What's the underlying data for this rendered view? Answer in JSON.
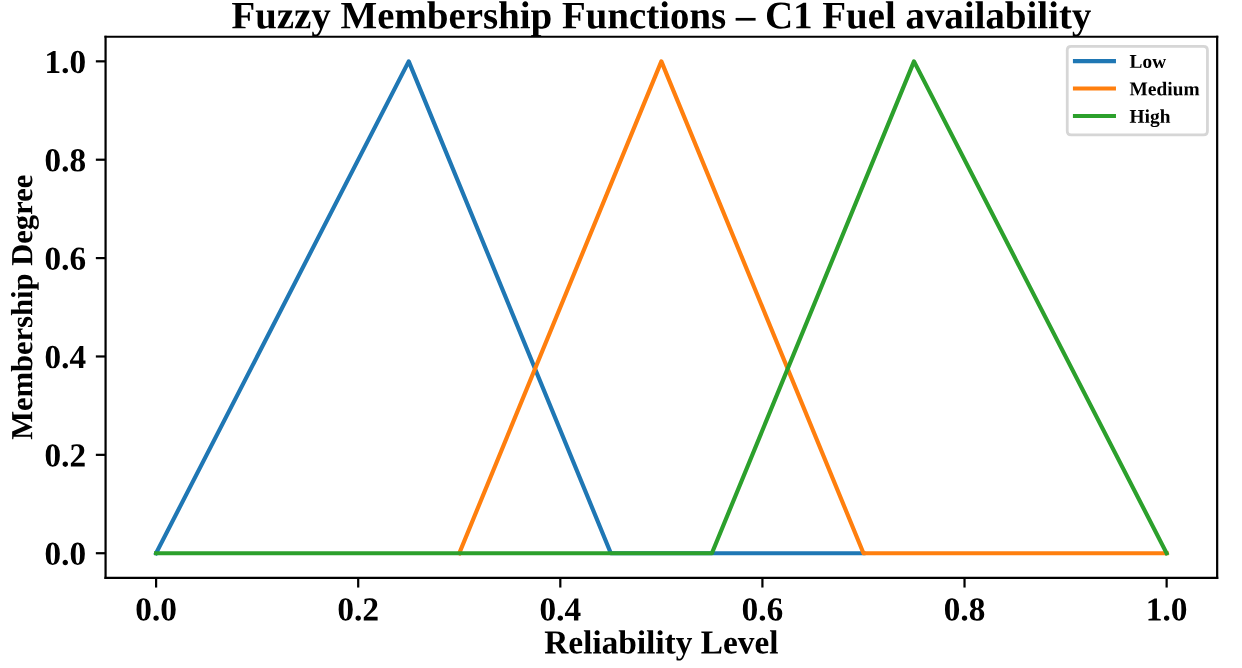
{
  "chart_data": {
    "type": "line",
    "title": "Fuzzy Membership Functions – C1 Fuel availability",
    "xlabel": "Reliability Level",
    "ylabel": "Membership Degree",
    "series": [
      {
        "name": "Low",
        "color": "#1f77b4",
        "x": [
          0,
          0.25,
          0.45,
          0.7
        ],
        "values": [
          0,
          1,
          0,
          0
        ]
      },
      {
        "name": "Medium",
        "color": "#ff7f0e",
        "x": [
          0.3,
          0.5,
          0.7,
          1.0
        ],
        "values": [
          0,
          1,
          0,
          0
        ]
      },
      {
        "name": "High",
        "color": "#2ca02c",
        "x": [
          0,
          0.55,
          0.75,
          1.0
        ],
        "values": [
          0,
          0,
          1,
          0
        ]
      }
    ],
    "xlim": [
      -0.05,
      1.05
    ],
    "ylim": [
      -0.05,
      1.05
    ],
    "xticks": [
      {
        "value": 0,
        "label": "0.0"
      },
      0.2,
      0.4,
      0.6,
      0.8,
      {
        "value": 1,
        "label": "1.0"
      }
    ],
    "yticks": [
      {
        "value": 0,
        "label": "0.0"
      },
      0.2,
      0.4,
      0.6,
      0.8,
      {
        "value": 1,
        "label": "1.0"
      }
    ],
    "grid": false,
    "legend": "top right",
    "marker": "none",
    "line_style": "solid"
  }
}
